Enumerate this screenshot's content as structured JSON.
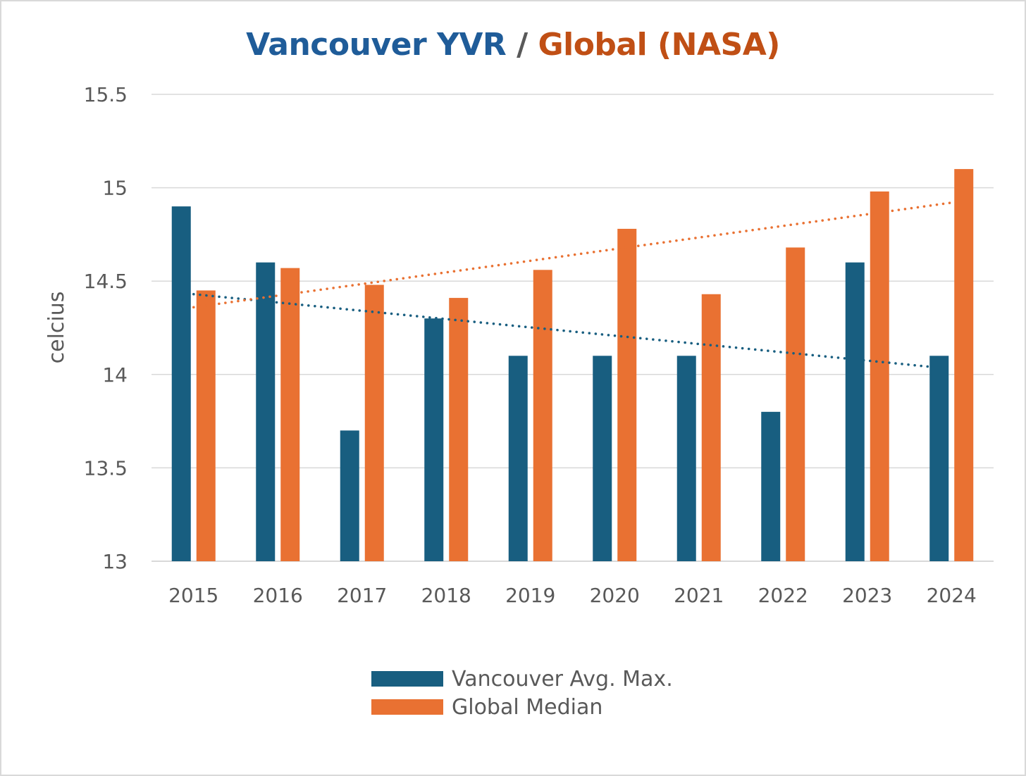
{
  "chart_data": {
    "type": "bar",
    "title": {
      "part1": "Vancouver YVR",
      "separator": " / ",
      "part2": "Global (NASA)"
    },
    "ylabel": "celcius",
    "xlabel": "",
    "ylim": [
      13,
      15.5
    ],
    "yticks": [
      13,
      13.5,
      14,
      14.5,
      15,
      15.5
    ],
    "ytick_labels": [
      "13",
      "13.5",
      "14",
      "14.5",
      "15",
      "15.5"
    ],
    "categories": [
      "2015",
      "2016",
      "2017",
      "2018",
      "2019",
      "2020",
      "2021",
      "2022",
      "2023",
      "2024"
    ],
    "grid": true,
    "legend_position": "bottom",
    "series": [
      {
        "name": "Vancouver Avg. Max.",
        "color": "#185e80",
        "values": [
          14.9,
          14.6,
          13.7,
          14.3,
          14.1,
          14.1,
          14.1,
          13.8,
          14.6,
          14.1
        ],
        "trendline": {
          "type": "linear",
          "style": "dotted",
          "start": 14.43,
          "end": 14.03
        }
      },
      {
        "name": "Global Median",
        "color": "#e97132",
        "values": [
          14.45,
          14.57,
          14.48,
          14.41,
          14.56,
          14.78,
          14.43,
          14.68,
          14.98,
          15.1
        ],
        "trendline": {
          "type": "linear",
          "style": "dotted",
          "start": 14.36,
          "end": 14.92
        }
      }
    ],
    "colors": {
      "title_part1": "#1f5c99",
      "title_separator": "#595959",
      "title_part2": "#c04f15",
      "axis_text": "#595959",
      "grid": "#d9d9d9"
    }
  }
}
